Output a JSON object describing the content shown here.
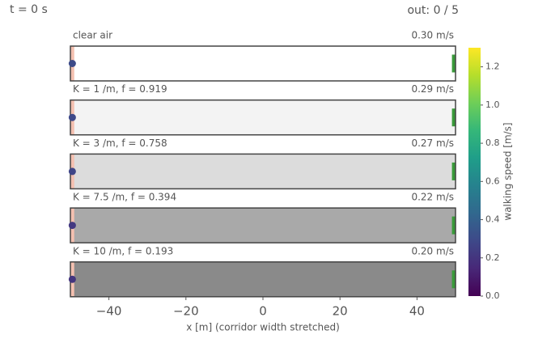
{
  "chart_data": {
    "type": "corridor",
    "time_label": "t =     0 s",
    "out_label": "out: 0 / 5",
    "xlabel": "x [m]  (corridor width stretched)",
    "xlim": [
      -50,
      50
    ],
    "xticks": [
      {
        "value": -40,
        "label": "−40"
      },
      {
        "value": -20,
        "label": "−20"
      },
      0,
      20,
      40
    ],
    "colormap": "viridis",
    "clim": [
      0,
      1.3
    ],
    "cticks": [
      {
        "value": 0,
        "label": "0.0"
      },
      {
        "value": 0.2,
        "label": "0.2"
      },
      {
        "value": 0.4,
        "label": "0.4"
      },
      {
        "value": 0.6,
        "label": "0.6"
      },
      {
        "value": 0.8,
        "label": "0.8"
      },
      {
        "value": 1,
        "label": "1.0"
      },
      {
        "value": 1.2,
        "label": "1.2"
      }
    ],
    "clabel": "walking speed [m/s]",
    "start_zone": [
      -50,
      -49
    ],
    "start_color": "#f4c0b0",
    "exit_x": 49.6,
    "exit_color": "#3a9a3a",
    "panels": [
      {
        "label": "clear air",
        "speed": 0.3,
        "speed_label": "0.30 m/s",
        "background": "#ffffff",
        "walker_x": -49.5
      },
      {
        "label": "K = 1 /m,  f = 0.919",
        "speed": 0.29,
        "speed_label": "0.29 m/s",
        "background": "#f3f3f3",
        "walker_x": -49.5
      },
      {
        "label": "K = 3 /m,  f = 0.758",
        "speed": 0.27,
        "speed_label": "0.27 m/s",
        "background": "#dcdcdc",
        "walker_x": -49.5
      },
      {
        "label": "K = 7.5 /m,  f = 0.394",
        "speed": 0.22,
        "speed_label": "0.22 m/s",
        "background": "#a9a9a9",
        "walker_x": -49.5
      },
      {
        "label": "K = 10 /m,  f = 0.193",
        "speed": 0.2,
        "speed_label": "0.20 m/s",
        "background": "#8a8a8a",
        "walker_x": -49.5
      }
    ]
  }
}
